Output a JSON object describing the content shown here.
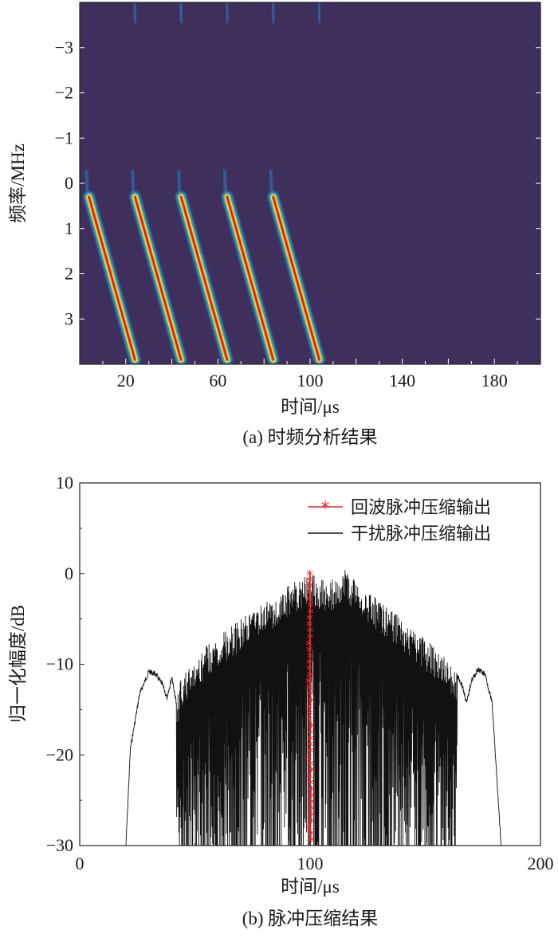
{
  "chart_data": [
    {
      "type": "heatmap",
      "title": "",
      "caption": "(a) 时频分析结果",
      "xlabel": "时间/μs",
      "ylabel": "频率/MHz",
      "xlim": [
        0,
        200
      ],
      "ylim": [
        -4,
        4
      ],
      "x_ticks": [
        20,
        60,
        100,
        140,
        180
      ],
      "y_ticks": [
        -3,
        -2,
        -1,
        0,
        1,
        2,
        3
      ],
      "background_color": "#3f2f5c",
      "colormap": [
        "#3f2f5c",
        "#2a7fbf",
        "#34c3b4",
        "#f6e93a",
        "#f28b2a",
        "#d21f1f"
      ],
      "chirps": [
        {
          "t_start": 4,
          "t_end": 24,
          "f_start": 0.3,
          "f_end": 3.9
        },
        {
          "t_start": 24,
          "t_end": 44,
          "f_start": 0.3,
          "f_end": 3.9
        },
        {
          "t_start": 44,
          "t_end": 64,
          "f_start": 0.3,
          "f_end": 3.9
        },
        {
          "t_start": 64,
          "t_end": 84,
          "f_start": 0.3,
          "f_end": 3.9
        },
        {
          "t_start": 84,
          "t_end": 104,
          "f_start": 0.3,
          "f_end": 3.9
        }
      ],
      "aliased_top_times": [
        24,
        44,
        64,
        84,
        104
      ]
    },
    {
      "type": "line",
      "title": "",
      "caption": "(b) 脉冲压缩结果",
      "xlabel": "时间/μs",
      "ylabel": "归一化幅度/dB",
      "xlim": [
        0,
        200
      ],
      "ylim": [
        -30,
        10
      ],
      "x_ticks": [
        0,
        100,
        200
      ],
      "y_ticks": [
        -30,
        -20,
        -10,
        0,
        10
      ],
      "series": [
        {
          "name": "回波脉冲压缩输出",
          "color": "#e8282c",
          "marker": "asterisk",
          "peak": {
            "x": 100,
            "y": 0
          },
          "span": [
            99,
            101
          ]
        },
        {
          "name": "干扰脉冲压缩输出",
          "color": "#111111",
          "x_range": [
            20,
            183
          ],
          "dense_range": [
            42,
            164
          ],
          "envelope": [
            [
              20,
              -30
            ],
            [
              22,
              -19
            ],
            [
              26,
              -13
            ],
            [
              30,
              -10.5
            ],
            [
              33,
              -10.8
            ],
            [
              36,
              -12
            ],
            [
              38,
              -13.5
            ],
            [
              40,
              -11
            ],
            [
              42,
              -14
            ],
            [
              44,
              -11.5
            ],
            [
              55,
              -8
            ],
            [
              70,
              -5
            ],
            [
              85,
              -2.5
            ],
            [
              92,
              -1
            ],
            [
              100,
              0
            ],
            [
              108,
              -1
            ],
            [
              115,
              0.5
            ],
            [
              130,
              -3
            ],
            [
              145,
              -6
            ],
            [
              158,
              -9
            ],
            [
              164,
              -11
            ],
            [
              166,
              -12
            ],
            [
              168,
              -14
            ],
            [
              170,
              -11.5
            ],
            [
              173,
              -10.3
            ],
            [
              176,
              -10.8
            ],
            [
              179,
              -14
            ],
            [
              181,
              -22
            ],
            [
              183,
              -30
            ]
          ]
        }
      ],
      "legend": "top-right"
    }
  ]
}
